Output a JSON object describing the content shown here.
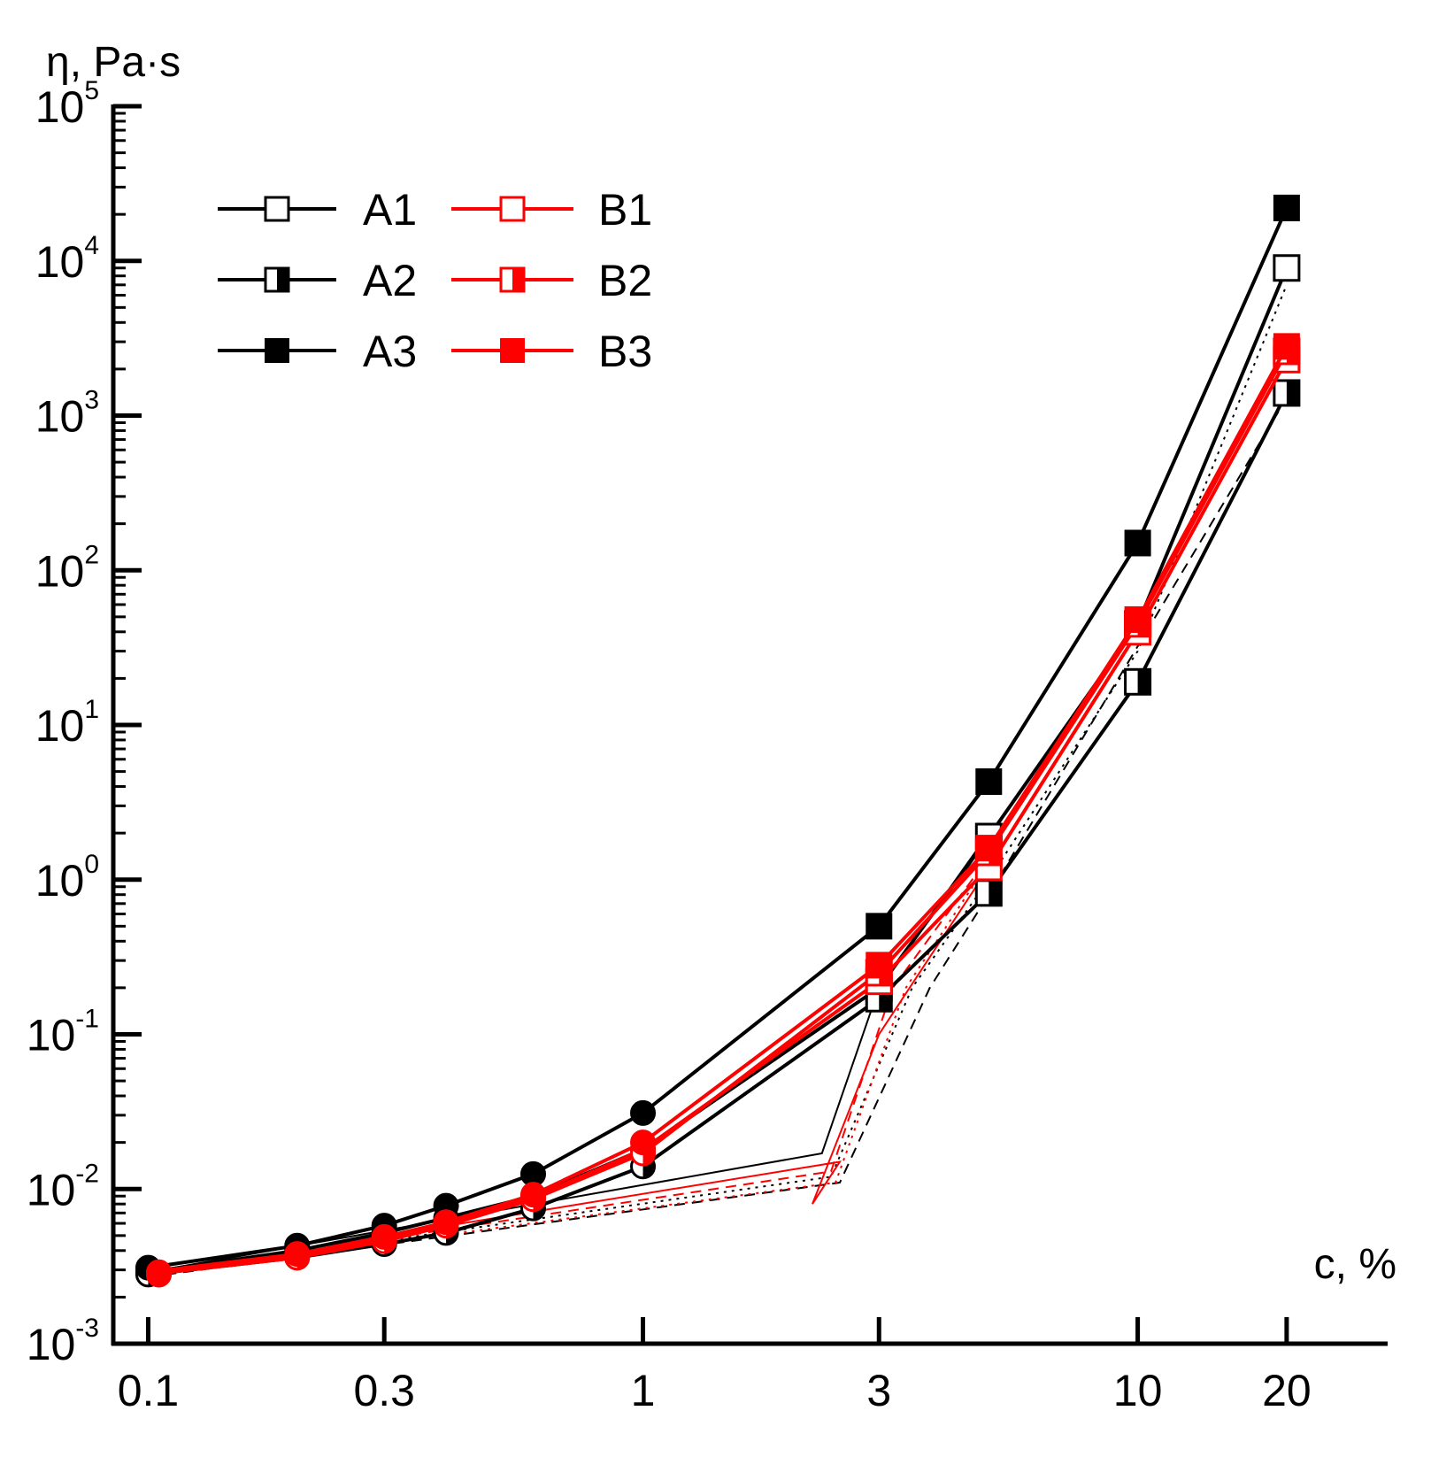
{
  "chart_data": {
    "type": "line",
    "title": "",
    "xlabel": "c, %",
    "ylabel": "η, Pa·s",
    "xscale": "log",
    "yscale": "log",
    "xlim": [
      0.085,
      32
    ],
    "ylim": [
      0.001,
      100000
    ],
    "x_ticks": [
      {
        "value": 0.1,
        "label": "0.1"
      },
      {
        "value": 0.3,
        "label": "0.3"
      },
      {
        "value": 1,
        "label": "1"
      },
      {
        "value": 3,
        "label": "3"
      },
      {
        "value": 10,
        "label": "10"
      },
      {
        "value": 20,
        "label": "20"
      }
    ],
    "y_ticks": [
      {
        "value": 0.001,
        "base": "10",
        "exp": "-3"
      },
      {
        "value": 0.01,
        "base": "10",
        "exp": "-2"
      },
      {
        "value": 0.1,
        "base": "10",
        "exp": "-1"
      },
      {
        "value": 1,
        "base": "10",
        "exp": "0"
      },
      {
        "value": 10,
        "base": "10",
        "exp": "1"
      },
      {
        "value": 100,
        "base": "10",
        "exp": "2"
      },
      {
        "value": 1000,
        "base": "10",
        "exp": "3"
      },
      {
        "value": 10000,
        "base": "10",
        "exp": "4"
      },
      {
        "value": 100000,
        "base": "10",
        "exp": "5"
      }
    ],
    "legend_position": "top-left",
    "colors": {
      "A": "#000000",
      "B": "#ff0000",
      "axis": "#000000"
    },
    "series": [
      {
        "name": "A1",
        "color": "#000000",
        "marker": "square-open",
        "x": [
          0.1,
          0.2,
          0.3,
          0.4,
          0.6,
          1,
          3,
          5,
          10,
          20
        ],
        "y": [
          0.0029,
          0.004,
          0.0052,
          0.0065,
          0.009,
          0.018,
          0.2,
          1.9,
          45,
          9000
        ]
      },
      {
        "name": "A2",
        "color": "#000000",
        "marker": "square-half",
        "x": [
          0.1,
          0.2,
          0.3,
          0.4,
          0.6,
          1,
          3,
          5,
          10,
          20
        ],
        "y": [
          0.0028,
          0.0036,
          0.0044,
          0.0052,
          0.0075,
          0.014,
          0.17,
          0.82,
          19,
          1400
        ]
      },
      {
        "name": "A3",
        "color": "#000000",
        "marker": "square-filled",
        "x": [
          0.1,
          0.2,
          0.3,
          0.4,
          0.6,
          1,
          3,
          5,
          10,
          20
        ],
        "y": [
          0.0031,
          0.0043,
          0.0058,
          0.0078,
          0.0125,
          0.031,
          0.5,
          4.3,
          150,
          22000
        ]
      },
      {
        "name": "B1",
        "color": "#ff0000",
        "marker": "square-open",
        "x": [
          0.1,
          0.2,
          0.3,
          0.4,
          0.6,
          1,
          3,
          5,
          10,
          20
        ],
        "y": [
          0.0028,
          0.0037,
          0.0048,
          0.006,
          0.0088,
          0.018,
          0.22,
          1.2,
          40,
          2300
        ]
      },
      {
        "name": "B2",
        "color": "#ff0000",
        "marker": "square-half",
        "x": [
          0.1,
          0.2,
          0.3,
          0.4,
          0.6,
          1,
          3,
          5,
          10,
          20
        ],
        "y": [
          0.0028,
          0.0036,
          0.0046,
          0.0058,
          0.0086,
          0.017,
          0.25,
          1.5,
          45,
          2600
        ]
      },
      {
        "name": "B3",
        "color": "#ff0000",
        "marker": "square-filled",
        "x": [
          0.1,
          0.2,
          0.3,
          0.4,
          0.6,
          1,
          3,
          5,
          10,
          20
        ],
        "y": [
          0.0029,
          0.0038,
          0.0049,
          0.0061,
          0.0092,
          0.02,
          0.28,
          1.6,
          48,
          2800
        ]
      }
    ],
    "fit_lines": [
      {
        "color": "#000000",
        "style": "solid",
        "x": [
          0.1,
          2.3,
          3.0,
          5.0
        ],
        "y": [
          0.0029,
          0.017,
          0.2,
          2.0
        ]
      },
      {
        "color": "#000000",
        "style": "dashed",
        "x": [
          0.1,
          2.5,
          3.8,
          5.0,
          20
        ],
        "y": [
          0.0027,
          0.011,
          0.2,
          0.8,
          1300
        ]
      },
      {
        "color": "#000000",
        "style": "dotted",
        "x": [
          0.1,
          2.4,
          3.5,
          5.0,
          10,
          20
        ],
        "y": [
          0.0028,
          0.012,
          0.2,
          1.0,
          30,
          7000
        ]
      },
      {
        "color": "#ff0000",
        "style": "solid",
        "x": [
          0.1,
          2.5,
          2.2,
          3.0,
          5.0
        ],
        "y": [
          0.0028,
          0.015,
          0.008,
          0.1,
          1.2
        ]
      },
      {
        "color": "#ff0000",
        "style": "dashed",
        "x": [
          0.1,
          2.4,
          3.2,
          5.0
        ],
        "y": [
          0.0028,
          0.013,
          0.2,
          1.4
        ]
      },
      {
        "color": "#ff0000",
        "style": "dotted",
        "x": [
          0.1,
          2.45,
          3.4,
          5.0
        ],
        "y": [
          0.0028,
          0.011,
          0.2,
          1.3
        ]
      }
    ]
  }
}
